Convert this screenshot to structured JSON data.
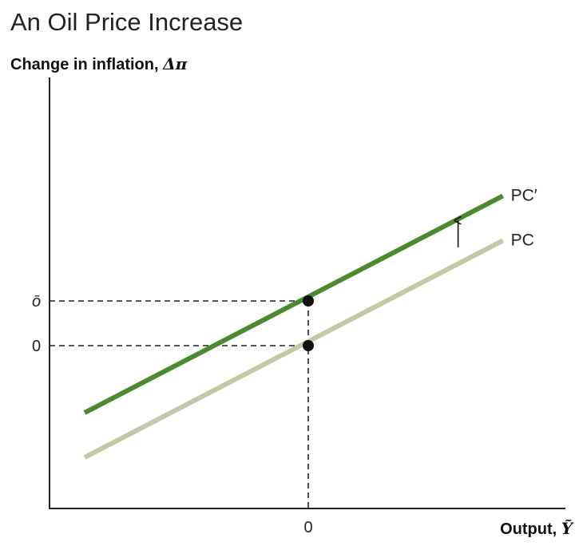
{
  "title": "An Oil Price Increase",
  "chart_data": {
    "type": "line",
    "title": "An Oil Price Increase",
    "ylabel_text": "Change in inflation, ",
    "ylabel_symbol": "Δπ",
    "xlabel_text": "Output, ",
    "xlabel_symbol": "Ỹ",
    "x_tick_labels": [
      "0"
    ],
    "y_tick_labels": [
      "0",
      "ō"
    ],
    "xlim": [
      -1,
      1
    ],
    "ylim": [
      -1,
      1
    ],
    "shift_amount": 0.2,
    "series": [
      {
        "name": "PC",
        "x": [
          -1,
          0.87
        ],
        "y": [
          -0.5,
          0.47
        ],
        "color": "#c3c8a6"
      },
      {
        "name": "PC′",
        "x": [
          -1,
          0.87
        ],
        "y": [
          -0.3,
          0.67
        ],
        "color": "#4b8a2e"
      }
    ],
    "points": [
      {
        "x": 0,
        "y": 0
      },
      {
        "x": 0,
        "y": 0.2
      }
    ],
    "annotations": [
      {
        "type": "arrow-up",
        "x": 0.67,
        "y_from": 0.44,
        "y_to": 0.56
      }
    ],
    "grid": false,
    "legend": "none"
  }
}
